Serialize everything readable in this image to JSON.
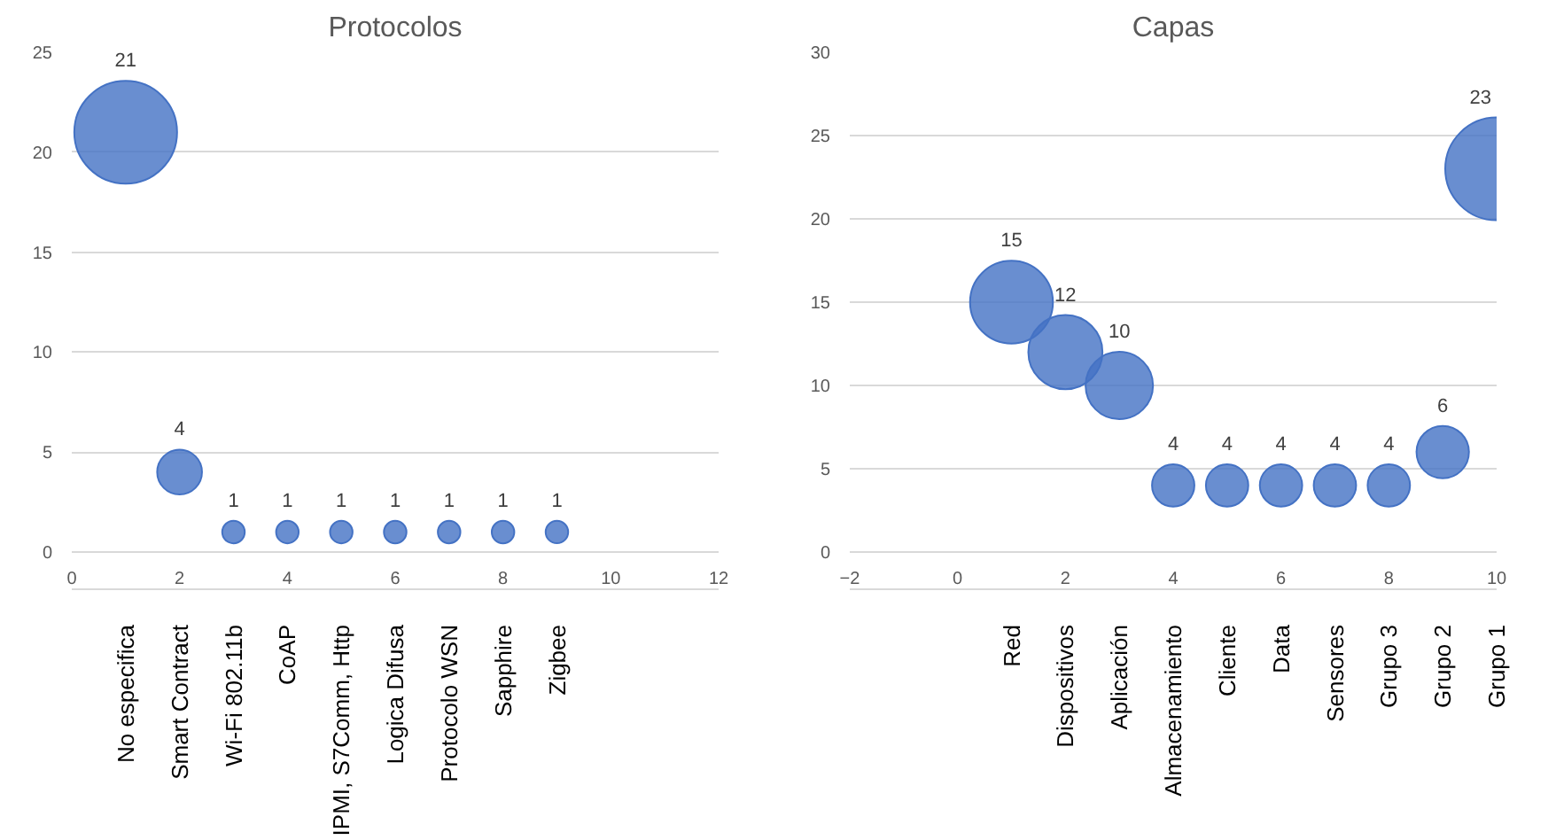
{
  "chart_data": [
    {
      "type": "bubble",
      "title": "Protocolos",
      "x": [
        1,
        2,
        3,
        4,
        5,
        6,
        7,
        8,
        9
      ],
      "values": [
        21,
        4,
        1,
        1,
        1,
        1,
        1,
        1,
        1
      ],
      "sizes": [
        1,
        0.19,
        0.048,
        0.048,
        0.048,
        0.048,
        0.048,
        0.048,
        0.048
      ],
      "color": "#4472c4",
      "xlim": [
        0,
        12
      ],
      "xticks": [
        0,
        2,
        4,
        6,
        8,
        10,
        12
      ],
      "ylim": [
        0,
        25
      ],
      "yticks": [
        0,
        5,
        10,
        15,
        20,
        25
      ],
      "grid": "y",
      "data_labels": true,
      "annotations": [
        "No especifica",
        "Smart Contract",
        "Wi-Fi 802.11b",
        "CoAP",
        "IPMI, S7Comm, Http",
        "Logica Difusa",
        "Protocolo WSN",
        "Sapphire",
        "Zigbee"
      ]
    },
    {
      "type": "bubble",
      "title": "Capas",
      "x": [
        1,
        2,
        3,
        4,
        5,
        6,
        7,
        8,
        9,
        10
      ],
      "values": [
        15,
        12,
        10,
        4,
        4,
        4,
        4,
        4,
        6,
        23
      ],
      "sizes": [
        0.65,
        0.52,
        0.43,
        0.17,
        0.17,
        0.17,
        0.17,
        0.17,
        0.26,
        1
      ],
      "color": "#4472c4",
      "xlim": [
        -2,
        10
      ],
      "xticks": [
        -2,
        0,
        2,
        4,
        6,
        8,
        10
      ],
      "ylim": [
        0,
        30
      ],
      "yticks": [
        0,
        5,
        10,
        15,
        20,
        25,
        30
      ],
      "grid": "y",
      "data_labels": true,
      "annotations": [
        "Red",
        "Dispositivos",
        "Aplicación",
        "Almacenamiento",
        "Cliente",
        "Data",
        "Sensores",
        "Grupo 3",
        "Grupo 2",
        "Grupo 1"
      ]
    }
  ]
}
